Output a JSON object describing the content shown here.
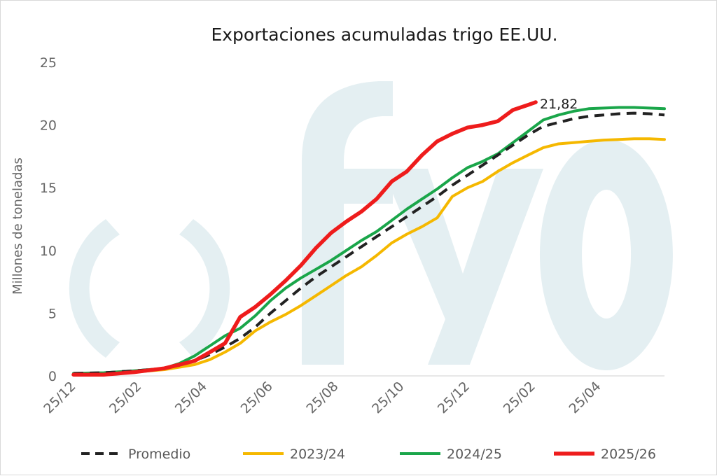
{
  "chart_data": {
    "type": "line",
    "title": "Exportaciones acumuladas trigo EE.UU.",
    "ylabel": "Millones de toneladas",
    "xlabel": "",
    "ylim": [
      0,
      25
    ],
    "yticks": [
      "0",
      "5",
      "10",
      "15",
      "20",
      "25"
    ],
    "xticks": [
      "25/12",
      "25/02",
      "25/04",
      "25/06",
      "25/08",
      "25/10",
      "25/12",
      "25/02",
      "25/04"
    ],
    "x_range_weeks": [
      0,
      78
    ],
    "grid": false,
    "legend_position": "bottom",
    "watermark": "fyo",
    "annotation": {
      "text": "21,82",
      "week": 61,
      "value": 21.82
    },
    "series": [
      {
        "name": "Promedio",
        "color": "#222222",
        "style": "dashed",
        "weeks": [
          0,
          4,
          8,
          12,
          14,
          16,
          18,
          20,
          22,
          24,
          26,
          28,
          30,
          32,
          34,
          36,
          38,
          40,
          42,
          44,
          46,
          48,
          50,
          52,
          54,
          56,
          58,
          60,
          62,
          64,
          66,
          68,
          70,
          72,
          74,
          76,
          78
        ],
        "values": [
          0.2,
          0.25,
          0.4,
          0.6,
          0.85,
          1.2,
          1.7,
          2.3,
          3.0,
          3.9,
          5.0,
          6.0,
          7.0,
          7.9,
          8.7,
          9.5,
          10.3,
          11.1,
          11.9,
          12.7,
          13.5,
          14.3,
          15.2,
          16.0,
          16.8,
          17.6,
          18.4,
          19.2,
          19.9,
          20.2,
          20.5,
          20.7,
          20.8,
          20.9,
          20.95,
          20.9,
          20.8
        ]
      },
      {
        "name": "2023/24",
        "color": "#f5b800",
        "style": "solid",
        "weeks": [
          0,
          4,
          8,
          12,
          14,
          16,
          18,
          20,
          22,
          24,
          26,
          28,
          30,
          32,
          34,
          36,
          38,
          40,
          42,
          44,
          46,
          48,
          50,
          52,
          54,
          56,
          58,
          60,
          62,
          64,
          66,
          68,
          70,
          72,
          74,
          76,
          78
        ],
        "values": [
          0.15,
          0.2,
          0.3,
          0.5,
          0.7,
          0.9,
          1.3,
          1.9,
          2.6,
          3.6,
          4.3,
          4.9,
          5.6,
          6.4,
          7.2,
          8.0,
          8.7,
          9.6,
          10.6,
          11.3,
          11.9,
          12.6,
          14.3,
          15.0,
          15.5,
          16.3,
          17.0,
          17.6,
          18.2,
          18.5,
          18.6,
          18.7,
          18.8,
          18.85,
          18.9,
          18.9,
          18.85
        ]
      },
      {
        "name": "2024/25",
        "color": "#1aa64a",
        "style": "solid",
        "weeks": [
          0,
          4,
          8,
          12,
          14,
          16,
          18,
          20,
          22,
          24,
          26,
          28,
          30,
          32,
          34,
          36,
          38,
          40,
          42,
          44,
          46,
          48,
          50,
          52,
          54,
          56,
          58,
          60,
          62,
          64,
          66,
          68,
          70,
          72,
          74,
          76,
          78
        ],
        "values": [
          0.2,
          0.25,
          0.4,
          0.6,
          1.0,
          1.6,
          2.4,
          3.2,
          3.8,
          4.8,
          6.0,
          7.0,
          7.8,
          8.5,
          9.2,
          10.0,
          10.8,
          11.5,
          12.4,
          13.3,
          14.1,
          14.9,
          15.8,
          16.6,
          17.1,
          17.7,
          18.6,
          19.5,
          20.4,
          20.8,
          21.1,
          21.3,
          21.35,
          21.4,
          21.4,
          21.35,
          21.3
        ]
      },
      {
        "name": "2025/26",
        "color": "#ee1c1c",
        "style": "solid",
        "weeks": [
          0,
          4,
          8,
          12,
          14,
          16,
          18,
          20,
          22,
          24,
          26,
          28,
          30,
          32,
          34,
          36,
          38,
          40,
          42,
          44,
          46,
          48,
          50,
          52,
          54,
          56,
          58,
          60,
          61
        ],
        "values": [
          0.1,
          0.1,
          0.3,
          0.6,
          0.9,
          1.2,
          1.9,
          2.6,
          4.7,
          5.5,
          6.5,
          7.6,
          8.8,
          10.2,
          11.4,
          12.3,
          13.1,
          14.1,
          15.5,
          16.3,
          17.6,
          18.7,
          19.3,
          19.8,
          20.0,
          20.3,
          21.2,
          21.6,
          21.82
        ]
      }
    ]
  }
}
